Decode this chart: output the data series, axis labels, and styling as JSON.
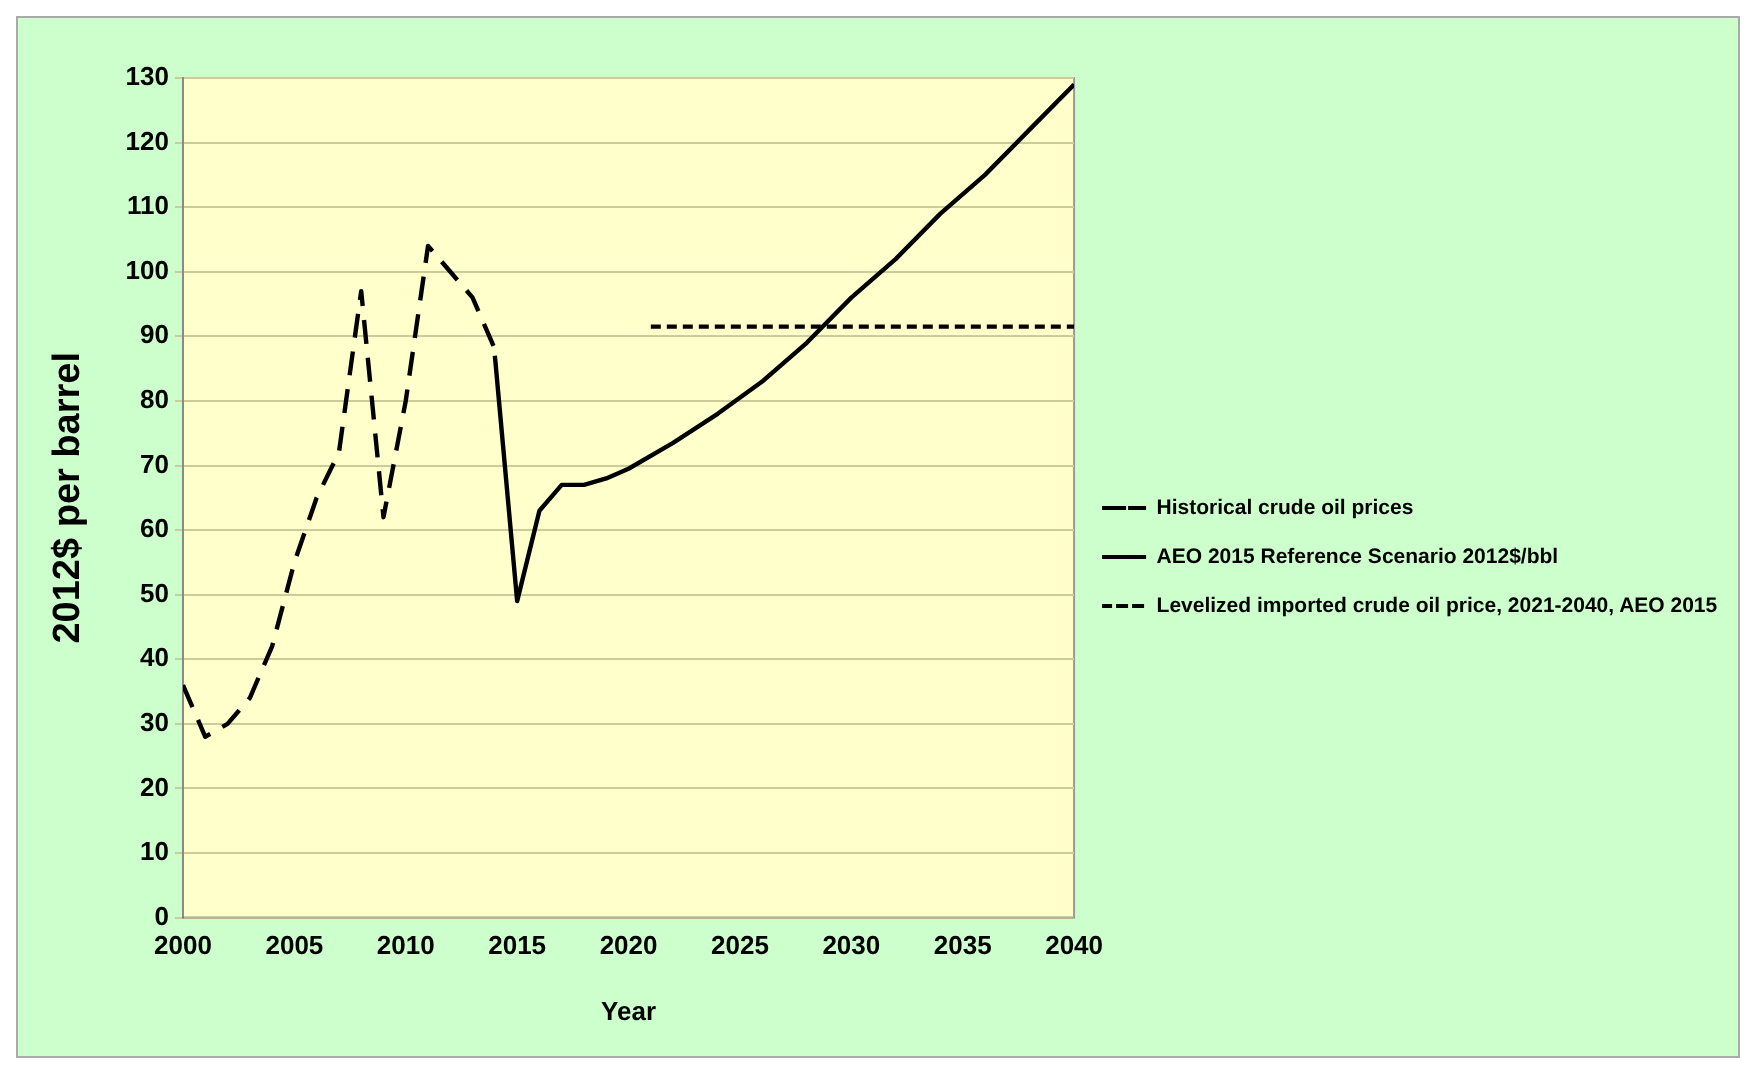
{
  "chart_data": {
    "type": "line",
    "xlabel": "Year",
    "ylabel": "2012$ per barrel",
    "xlim": [
      2000,
      2040
    ],
    "xticks": [
      2000,
      2005,
      2010,
      2015,
      2020,
      2025,
      2030,
      2035,
      2040
    ],
    "ylim": [
      0,
      130
    ],
    "yticks": [
      0,
      10,
      20,
      30,
      40,
      50,
      60,
      70,
      80,
      90,
      100,
      110,
      120,
      130
    ],
    "grid": "y",
    "legend": "right",
    "marker": "none",
    "series": [
      {
        "name": "Historical crude oil prices",
        "color": "#000000",
        "line_style": "dashed",
        "x": [
          2000,
          2001,
          2002,
          2003,
          2004,
          2005,
          2006,
          2007,
          2008,
          2009,
          2010,
          2011,
          2012,
          2013,
          2014
        ],
        "values": [
          36,
          28,
          30,
          34,
          42,
          55,
          65,
          72,
          97,
          62,
          80,
          104,
          100,
          96,
          88
        ]
      },
      {
        "name": "AEO 2015 Reference Scenario 2012$/bbl",
        "color": "#000000",
        "line_style": "solid",
        "x": [
          2014,
          2015,
          2016,
          2017,
          2018,
          2019,
          2020,
          2022,
          2024,
          2026,
          2028,
          2030,
          2032,
          2034,
          2036,
          2038,
          2040
        ],
        "values": [
          87,
          49,
          63,
          67,
          67,
          68,
          69.5,
          73.5,
          78,
          83,
          89,
          96,
          102,
          109,
          115,
          122,
          129
        ]
      },
      {
        "name": "Levelized imported crude oil price, 2021-2040, AEO 2015",
        "color": "#000000",
        "line_style": "dotted",
        "x": [
          2021,
          2040
        ],
        "values": [
          91.5,
          91.5
        ]
      }
    ]
  }
}
